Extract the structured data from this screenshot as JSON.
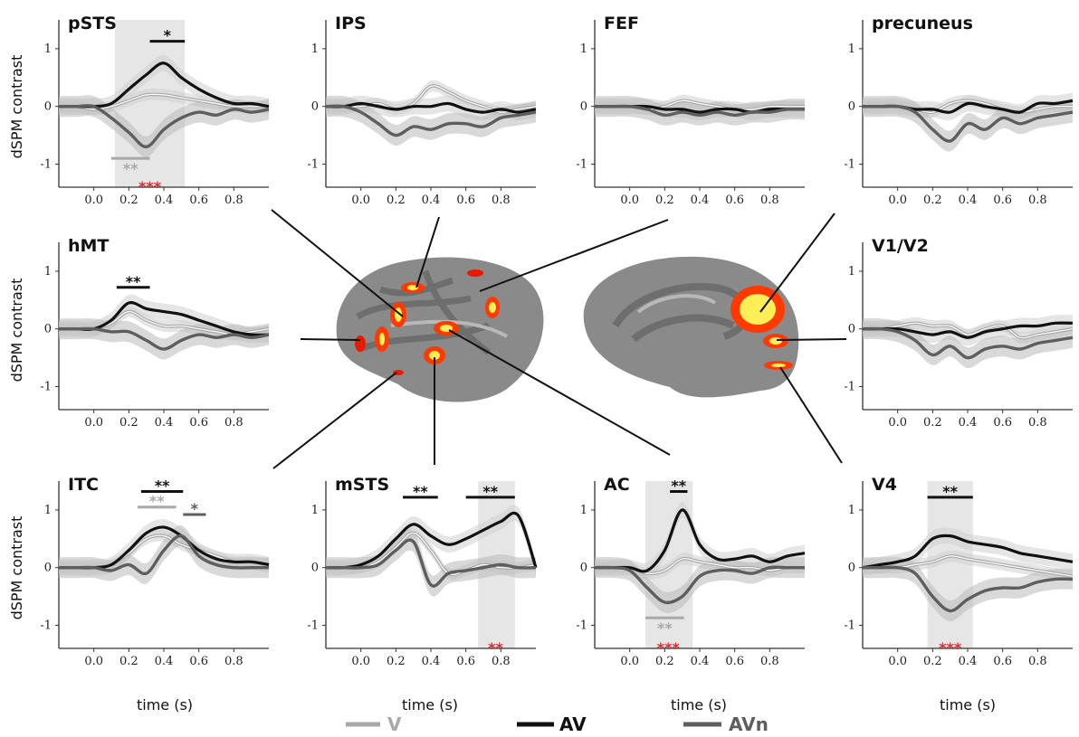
{
  "colors": {
    "V": "#a8a8a8",
    "AV": "#111111",
    "AVn": "#5e5e5e",
    "shade": "#e6e6e6",
    "sig_red": "#e8262b"
  },
  "legend": [
    {
      "label": "V",
      "color": "#a8a8a8"
    },
    {
      "label": "AV",
      "color": "#111111"
    },
    {
      "label": "AVn",
      "color": "#5e5e5e"
    }
  ],
  "ylabel": "dSPM contrast",
  "xlabel": "time (s)",
  "chart_data": [
    {
      "type": "line",
      "title": "pSTS",
      "xlim": [
        -0.2,
        1.0
      ],
      "ylim": [
        -1.4,
        1.5
      ],
      "x_ticks": [
        "0.0",
        "0.2",
        "0.4",
        "0.6",
        "0.8"
      ],
      "y_ticks": [
        "1",
        "0",
        "-1"
      ],
      "x": [
        -0.2,
        -0.1,
        0.0,
        0.1,
        0.2,
        0.3,
        0.4,
        0.5,
        0.6,
        0.7,
        0.8,
        0.9,
        1.0
      ],
      "series": [
        {
          "name": "V",
          "values": [
            0,
            0,
            -0.05,
            0,
            0.1,
            0.2,
            0.2,
            0.15,
            0.1,
            0.05,
            0,
            0,
            0
          ]
        },
        {
          "name": "AV",
          "values": [
            0,
            0,
            0,
            0.05,
            0.3,
            0.55,
            0.75,
            0.5,
            0.3,
            0.15,
            0.05,
            0.05,
            0
          ]
        },
        {
          "name": "AVn",
          "values": [
            0,
            0,
            0,
            -0.2,
            -0.45,
            -0.7,
            -0.4,
            -0.2,
            -0.1,
            -0.15,
            -0.05,
            -0.1,
            -0.05
          ]
        }
      ],
      "shaded": [
        [
          0.12,
          0.52
        ]
      ],
      "annotations": [
        {
          "text": "*",
          "x1": 0.32,
          "x2": 0.52,
          "y": 1.13,
          "color": "#111111"
        },
        {
          "text": "**",
          "x1": 0.1,
          "x2": 0.32,
          "y": -0.9,
          "color": "#a8a8a8"
        },
        {
          "text": "***",
          "x": 0.32,
          "y": -1.45,
          "color": "#e8262b"
        }
      ]
    },
    {
      "type": "line",
      "title": "IPS",
      "xlim": [
        -0.2,
        1.0
      ],
      "ylim": [
        -1.4,
        1.5
      ],
      "x_ticks": [
        "0.0",
        "0.2",
        "0.4",
        "0.6",
        "0.8"
      ],
      "y_ticks": [
        "1",
        "0",
        "-1"
      ],
      "x": [
        -0.2,
        -0.1,
        0.0,
        0.1,
        0.2,
        0.3,
        0.4,
        0.5,
        0.6,
        0.7,
        0.8,
        0.9,
        1.0
      ],
      "series": [
        {
          "name": "V",
          "values": [
            0,
            0,
            0,
            0.05,
            -0.05,
            0.05,
            0.35,
            0.25,
            0.1,
            0,
            -0.1,
            -0.05,
            0
          ]
        },
        {
          "name": "AV",
          "values": [
            0,
            0,
            0.05,
            0,
            -0.05,
            0,
            0,
            0.05,
            -0.05,
            -0.1,
            -0.05,
            -0.1,
            -0.05
          ]
        },
        {
          "name": "AVn",
          "values": [
            0,
            0,
            -0.1,
            -0.3,
            -0.5,
            -0.35,
            -0.4,
            -0.3,
            -0.3,
            -0.35,
            -0.2,
            -0.15,
            -0.1
          ]
        }
      ],
      "shaded": [],
      "annotations": []
    },
    {
      "type": "line",
      "title": "FEF",
      "xlim": [
        -0.2,
        1.0
      ],
      "ylim": [
        -1.4,
        1.5
      ],
      "x_ticks": [
        "0.0",
        "0.2",
        "0.4",
        "0.6",
        "0.8"
      ],
      "y_ticks": [
        "1",
        "0",
        "-1"
      ],
      "x": [
        -0.2,
        -0.1,
        0.0,
        0.1,
        0.2,
        0.3,
        0.4,
        0.5,
        0.6,
        0.7,
        0.8,
        0.9,
        1.0
      ],
      "series": [
        {
          "name": "V",
          "values": [
            0,
            0,
            0,
            -0.05,
            0,
            0.1,
            0.05,
            0,
            -0.05,
            -0.05,
            0,
            0,
            0
          ]
        },
        {
          "name": "AV",
          "values": [
            0,
            0,
            0,
            0,
            -0.05,
            -0.05,
            -0.1,
            -0.05,
            -0.05,
            -0.1,
            -0.05,
            -0.05,
            -0.05
          ]
        },
        {
          "name": "AVn",
          "values": [
            0,
            0,
            0,
            -0.05,
            -0.15,
            -0.1,
            -0.15,
            -0.1,
            -0.15,
            -0.1,
            -0.1,
            -0.05,
            -0.05
          ]
        }
      ],
      "shaded": [],
      "annotations": []
    },
    {
      "type": "line",
      "title": "precuneus",
      "xlim": [
        -0.2,
        1.0
      ],
      "ylim": [
        -1.4,
        1.5
      ],
      "x_ticks": [
        "0.0",
        "0.2",
        "0.4",
        "0.6",
        "0.8"
      ],
      "y_ticks": [
        "1",
        "0",
        "-1"
      ],
      "x": [
        -0.2,
        -0.1,
        0.0,
        0.1,
        0.2,
        0.3,
        0.4,
        0.5,
        0.6,
        0.7,
        0.8,
        0.9,
        1.0
      ],
      "series": [
        {
          "name": "V",
          "values": [
            0,
            0,
            0,
            -0.05,
            -0.1,
            0.05,
            0.1,
            0.05,
            -0.05,
            -0.1,
            -0.05,
            0,
            0
          ]
        },
        {
          "name": "AV",
          "values": [
            0,
            0,
            0,
            -0.05,
            -0.05,
            -0.1,
            0.05,
            0,
            -0.05,
            -0.1,
            0.05,
            0.05,
            0.1
          ]
        },
        {
          "name": "AVn",
          "values": [
            0,
            0,
            0,
            -0.1,
            -0.4,
            -0.6,
            -0.3,
            -0.4,
            -0.2,
            -0.3,
            -0.2,
            -0.15,
            -0.1
          ]
        }
      ],
      "shaded": [],
      "annotations": []
    },
    {
      "type": "line",
      "title": "hMT",
      "xlim": [
        -0.2,
        1.0
      ],
      "ylim": [
        -1.4,
        1.5
      ],
      "x_ticks": [
        "0.0",
        "0.2",
        "0.4",
        "0.6",
        "0.8"
      ],
      "y_ticks": [
        "1",
        "0",
        "-1"
      ],
      "x": [
        -0.2,
        -0.1,
        0.0,
        0.1,
        0.2,
        0.3,
        0.4,
        0.5,
        0.6,
        0.7,
        0.8,
        0.9,
        1.0
      ],
      "series": [
        {
          "name": "V",
          "values": [
            0,
            0,
            0,
            0.1,
            0.3,
            0.15,
            0.05,
            0.05,
            0,
            -0.05,
            -0.1,
            -0.05,
            0
          ]
        },
        {
          "name": "AV",
          "values": [
            0,
            0,
            0,
            0.15,
            0.45,
            0.35,
            0.3,
            0.25,
            0.15,
            0.05,
            -0.05,
            -0.1,
            -0.1
          ]
        },
        {
          "name": "AVn",
          "values": [
            0,
            0,
            0,
            -0.05,
            -0.05,
            -0.2,
            -0.35,
            -0.2,
            -0.1,
            -0.15,
            -0.1,
            -0.15,
            -0.1
          ]
        }
      ],
      "shaded": [],
      "annotations": [
        {
          "text": "**",
          "x1": 0.13,
          "x2": 0.32,
          "y": 0.72,
          "color": "#111111"
        }
      ]
    },
    {
      "type": "line",
      "title": "V1/V2",
      "xlim": [
        -0.2,
        1.0
      ],
      "ylim": [
        -1.4,
        1.5
      ],
      "x_ticks": [
        "0.0",
        "0.2",
        "0.4",
        "0.6",
        "0.8"
      ],
      "y_ticks": [
        "1",
        "0",
        "-1"
      ],
      "x": [
        -0.2,
        -0.1,
        0.0,
        0.1,
        0.2,
        0.3,
        0.4,
        0.5,
        0.6,
        0.7,
        0.8,
        0.9,
        1.0
      ],
      "series": [
        {
          "name": "V",
          "values": [
            0,
            0,
            0.05,
            0.1,
            0.05,
            0.05,
            -0.1,
            0,
            0.05,
            -0.15,
            -0.1,
            -0.05,
            0
          ]
        },
        {
          "name": "AV",
          "values": [
            0,
            0,
            0,
            -0.05,
            -0.1,
            -0.05,
            -0.15,
            -0.05,
            0,
            0.05,
            0.05,
            0.1,
            0.1
          ]
        },
        {
          "name": "AVn",
          "values": [
            0,
            0,
            -0.05,
            -0.2,
            -0.45,
            -0.3,
            -0.5,
            -0.35,
            -0.3,
            -0.35,
            -0.25,
            -0.2,
            -0.15
          ]
        }
      ],
      "shaded": [],
      "annotations": []
    },
    {
      "type": "line",
      "title": "ITC",
      "xlim": [
        -0.2,
        1.0
      ],
      "ylim": [
        -1.4,
        1.5
      ],
      "x_ticks": [
        "0.0",
        "0.2",
        "0.4",
        "0.6",
        "0.8"
      ],
      "y_ticks": [
        "1",
        "0",
        "-1"
      ],
      "x": [
        -0.2,
        -0.1,
        0.0,
        0.1,
        0.2,
        0.3,
        0.4,
        0.5,
        0.6,
        0.7,
        0.8,
        0.9,
        1.0
      ],
      "series": [
        {
          "name": "V",
          "values": [
            0,
            0,
            0,
            0.05,
            0.25,
            0.5,
            0.55,
            0.4,
            0.3,
            0.2,
            0.1,
            0.1,
            0.05
          ]
        },
        {
          "name": "AV",
          "values": [
            0,
            0,
            0,
            0.05,
            0.3,
            0.6,
            0.7,
            0.55,
            0.3,
            0.15,
            0.1,
            0.1,
            0.05
          ]
        },
        {
          "name": "AVn",
          "values": [
            0,
            0,
            0,
            -0.05,
            0.05,
            -0.1,
            0.3,
            0.55,
            0.2,
            0.05,
            0,
            0,
            0
          ]
        }
      ],
      "shaded": [],
      "annotations": [
        {
          "text": "**",
          "x1": 0.27,
          "x2": 0.51,
          "y": 1.32,
          "color": "#111111"
        },
        {
          "text": "**",
          "x1": 0.25,
          "x2": 0.47,
          "y": 1.05,
          "color": "#a8a8a8"
        },
        {
          "text": "*",
          "x1": 0.51,
          "x2": 0.64,
          "y": 0.92,
          "color": "#5e5e5e"
        }
      ]
    },
    {
      "type": "line",
      "title": "mSTS",
      "xlim": [
        -0.2,
        1.0
      ],
      "ylim": [
        -1.4,
        1.5
      ],
      "x_ticks": [
        "0.0",
        "0.2",
        "0.4",
        "0.6",
        "0.8"
      ],
      "y_ticks": [
        "1",
        "0",
        "-1"
      ],
      "x": [
        -0.2,
        -0.1,
        0.0,
        0.1,
        0.2,
        0.3,
        0.4,
        0.5,
        0.6,
        0.7,
        0.8,
        0.9,
        1.0
      ],
      "series": [
        {
          "name": "V",
          "values": [
            0,
            0,
            0,
            0.1,
            0.35,
            0.6,
            0.3,
            -0.1,
            -0.05,
            0.05,
            0,
            0,
            0.05
          ]
        },
        {
          "name": "AV",
          "values": [
            0,
            0,
            0.05,
            0.2,
            0.5,
            0.75,
            0.55,
            0.4,
            0.5,
            0.65,
            0.8,
            0.9,
            0
          ]
        },
        {
          "name": "AVn",
          "values": [
            0,
            0,
            0,
            0.05,
            0.3,
            0.45,
            -0.3,
            -0.1,
            -0.05,
            0,
            0.05,
            0,
            0
          ]
        }
      ],
      "shaded": [
        [
          0.67,
          0.88
        ]
      ],
      "annotations": [
        {
          "text": "**",
          "x1": 0.24,
          "x2": 0.44,
          "y": 1.22,
          "color": "#111111"
        },
        {
          "text": "**",
          "x1": 0.6,
          "x2": 0.88,
          "y": 1.22,
          "color": "#111111"
        },
        {
          "text": "**",
          "x": 0.77,
          "y": -1.45,
          "color": "#e8262b"
        }
      ]
    },
    {
      "type": "line",
      "title": "AC",
      "xlim": [
        -0.2,
        1.0
      ],
      "ylim": [
        -1.4,
        1.5
      ],
      "x_ticks": [
        "0.0",
        "0.2",
        "0.4",
        "0.6",
        "0.8"
      ],
      "y_ticks": [
        "1",
        "0",
        "-1"
      ],
      "x": [
        -0.2,
        -0.1,
        0.0,
        0.1,
        0.2,
        0.3,
        0.4,
        0.5,
        0.6,
        0.7,
        0.8,
        0.9,
        1.0
      ],
      "series": [
        {
          "name": "V",
          "values": [
            0,
            0,
            0,
            -0.1,
            -0.05,
            0.15,
            0.1,
            0.05,
            0,
            0,
            -0.05,
            0,
            0
          ]
        },
        {
          "name": "AV",
          "values": [
            0,
            0,
            0,
            -0.05,
            0.3,
            1.0,
            0.4,
            0.15,
            0.15,
            0.2,
            0.1,
            0.2,
            0.25
          ]
        },
        {
          "name": "AVn",
          "values": [
            0,
            0,
            -0.05,
            -0.35,
            -0.6,
            -0.5,
            -0.15,
            -0.05,
            -0.05,
            -0.1,
            0,
            0,
            0
          ]
        }
      ],
      "shaded": [
        [
          0.09,
          0.36
        ]
      ],
      "annotations": [
        {
          "text": "**",
          "x1": 0.23,
          "x2": 0.33,
          "y": 1.32,
          "color": "#111111"
        },
        {
          "text": "**",
          "x1": 0.09,
          "x2": 0.31,
          "y": -0.87,
          "color": "#a8a8a8"
        },
        {
          "text": "***",
          "x": 0.22,
          "y": -1.45,
          "color": "#e8262b"
        }
      ]
    },
    {
      "type": "line",
      "title": "V4",
      "xlim": [
        -0.2,
        1.0
      ],
      "ylim": [
        -1.4,
        1.5
      ],
      "x_ticks": [
        "0.0",
        "0.2",
        "0.4",
        "0.6",
        "0.8"
      ],
      "y_ticks": [
        "1",
        "0",
        "-1"
      ],
      "x": [
        -0.2,
        -0.1,
        0.0,
        0.1,
        0.2,
        0.3,
        0.4,
        0.5,
        0.6,
        0.7,
        0.8,
        0.9,
        1.0
      ],
      "series": [
        {
          "name": "V",
          "values": [
            0,
            0,
            0,
            0.05,
            0.1,
            0.2,
            0.15,
            0.1,
            0.05,
            0,
            -0.05,
            -0.1,
            -0.15
          ]
        },
        {
          "name": "AV",
          "values": [
            0,
            0.05,
            0.1,
            0.2,
            0.5,
            0.55,
            0.45,
            0.4,
            0.35,
            0.25,
            0.2,
            0.15,
            0.1
          ]
        },
        {
          "name": "AVn",
          "values": [
            0,
            0,
            0,
            -0.1,
            -0.5,
            -0.75,
            -0.55,
            -0.4,
            -0.35,
            -0.35,
            -0.25,
            -0.2,
            -0.2
          ]
        }
      ],
      "shaded": [
        [
          0.17,
          0.43
        ]
      ],
      "annotations": [
        {
          "text": "**",
          "x1": 0.17,
          "x2": 0.43,
          "y": 1.22,
          "color": "#111111"
        },
        {
          "text": "***",
          "x": 0.3,
          "y": -1.45,
          "color": "#e8262b"
        }
      ]
    }
  ]
}
